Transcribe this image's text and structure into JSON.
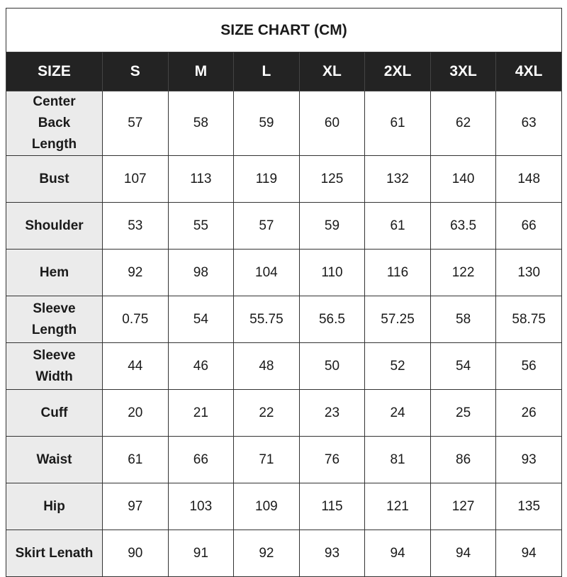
{
  "title": "SIZE CHART  (CM)",
  "header": [
    "SIZE",
    "S",
    "M",
    "L",
    "XL",
    "2XL",
    "3XL",
    "4XL"
  ],
  "rows": [
    {
      "label": "Center Back Length",
      "values": [
        "57",
        "58",
        "59",
        "60",
        "61",
        "62",
        "63"
      ]
    },
    {
      "label": "Bust",
      "values": [
        "107",
        "113",
        "119",
        "125",
        "132",
        "140",
        "148"
      ]
    },
    {
      "label": "Shoulder",
      "values": [
        "53",
        "55",
        "57",
        "59",
        "61",
        "63.5",
        "66"
      ]
    },
    {
      "label": "Hem",
      "values": [
        "92",
        "98",
        "104",
        "110",
        "116",
        "122",
        "130"
      ]
    },
    {
      "label": "Sleeve Length",
      "values": [
        "0.75",
        "54",
        "55.75",
        "56.5",
        "57.25",
        "58",
        "58.75"
      ]
    },
    {
      "label": "Sleeve Width",
      "values": [
        "44",
        "46",
        "48",
        "50",
        "52",
        "54",
        "56"
      ]
    },
    {
      "label": "Cuff",
      "values": [
        "20",
        "21",
        "22",
        "23",
        "24",
        "25",
        "26"
      ]
    },
    {
      "label": "Waist",
      "values": [
        "61",
        "66",
        "71",
        "76",
        "81",
        "86",
        "93"
      ]
    },
    {
      "label": "Hip",
      "values": [
        "97",
        "103",
        "109",
        "115",
        "121",
        "127",
        "135"
      ]
    },
    {
      "label": "Skirt Lenath",
      "values": [
        "90",
        "91",
        "92",
        "93",
        "94",
        "94",
        "94"
      ]
    }
  ]
}
